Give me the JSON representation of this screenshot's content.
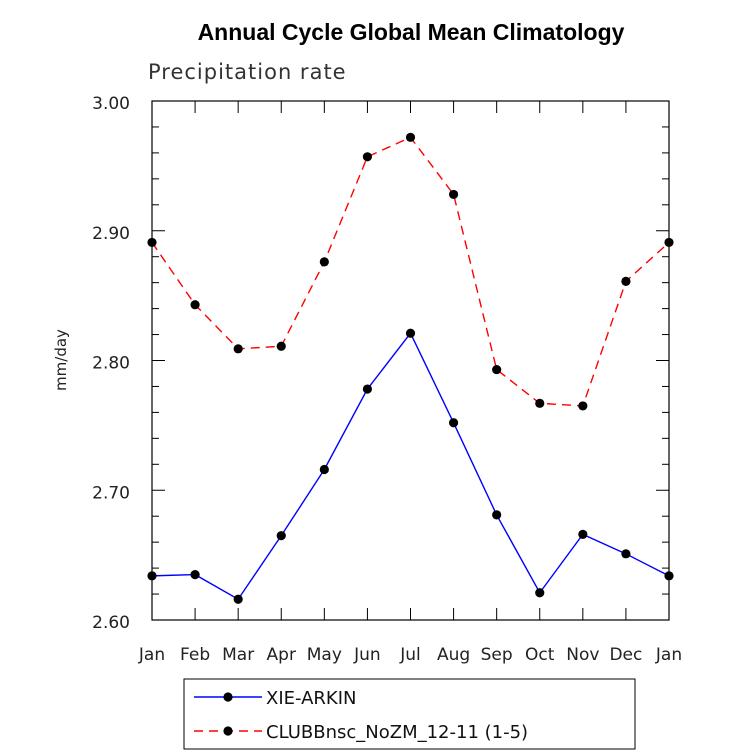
{
  "chart_data": {
    "type": "line",
    "title": "Annual Cycle Global Mean Climatology",
    "subtitle": "Precipitation rate",
    "ylabel": "mm/day",
    "xlabel": "",
    "categories": [
      "Jan",
      "Feb",
      "Mar",
      "Apr",
      "May",
      "Jun",
      "Jul",
      "Aug",
      "Sep",
      "Oct",
      "Nov",
      "Dec",
      "Jan"
    ],
    "ylim": [
      2.6,
      3.0
    ],
    "yticks": [
      "2.60",
      "2.70",
      "2.80",
      "2.90",
      "3.00"
    ],
    "ytick_values": [
      2.6,
      2.7,
      2.8,
      2.9,
      3.0
    ],
    "series": [
      {
        "name": "XIE-ARKIN",
        "color": "#0000ff",
        "dash": "solid",
        "values": [
          2.634,
          2.635,
          2.616,
          2.665,
          2.716,
          2.778,
          2.821,
          2.752,
          2.681,
          2.621,
          2.666,
          2.651,
          2.634
        ]
      },
      {
        "name": "CLUBBnsc_NoZM_12-11 (1-5)",
        "color": "#ff0000",
        "dash": "dashed",
        "values": [
          2.891,
          2.843,
          2.809,
          2.811,
          2.876,
          2.957,
          2.972,
          2.928,
          2.793,
          2.767,
          2.765,
          2.861,
          2.891
        ]
      }
    ],
    "legend_position": "bottom"
  }
}
